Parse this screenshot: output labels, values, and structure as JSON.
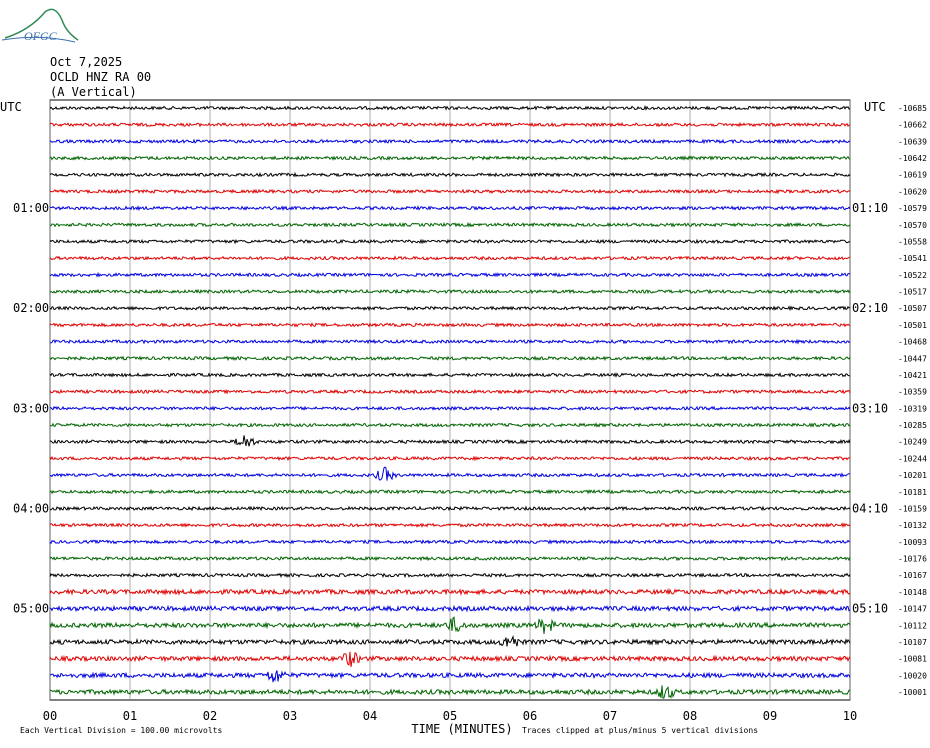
{
  "header": {
    "logo": "OFGC",
    "date": "Oct 7,2025",
    "station": "OCLD HNZ RA 00",
    "component": "(A Vertical)"
  },
  "left_axis": {
    "title": "UTC",
    "labels": [
      "01:00",
      "02:00",
      "03:00",
      "04:00",
      "05:00"
    ]
  },
  "right_axis": {
    "title": "UTC",
    "labels": [
      "01:10",
      "02:10",
      "03:10",
      "04:10",
      "05:10"
    ]
  },
  "trace_labels": [
    "-10685",
    "-10662",
    "-10639",
    "-10642",
    "-10619",
    "-10620",
    "-10579",
    "-10570",
    "-10558",
    "-10541",
    "-10522",
    "-10517",
    "-10507",
    "-10501",
    "-10468",
    "-10447",
    "-10421",
    "-10359",
    "-10319",
    "-10285",
    "-10249",
    "-10244",
    "-10201",
    "-10181",
    "-10159",
    "-10132",
    "-10093",
    "-10176",
    "-10167",
    "-10148",
    "-10147",
    "-10112",
    "-10107",
    "-10081",
    "-10020",
    "-10001"
  ],
  "x_axis": {
    "title": "TIME (MINUTES)",
    "ticks": [
      "00",
      "01",
      "02",
      "03",
      "04",
      "05",
      "06",
      "07",
      "08",
      "09",
      "10"
    ]
  },
  "footer": {
    "scale": "Each Vertical Division =  100.00 microvolts",
    "clip": "Traces clipped at plus/minus 5 vertical divisions"
  }
}
